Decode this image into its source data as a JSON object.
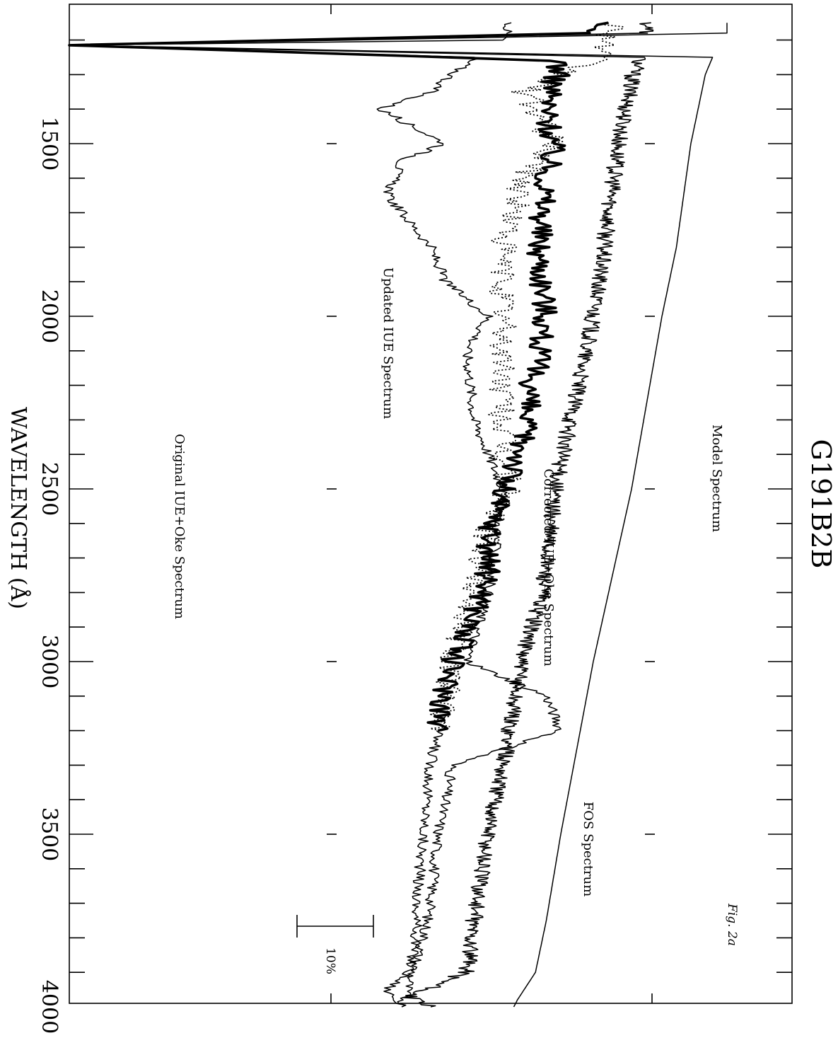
{
  "chart_data": {
    "type": "line",
    "orientation": "rotated-90",
    "title": "G191B2B",
    "xlabel": "WAVELENGTH (Å)",
    "xlim": [
      1150,
      4000
    ],
    "x_ticks_major": [
      1500,
      2000,
      2500,
      3000,
      3500,
      4000
    ],
    "x_ticks_minor_step": 100,
    "tick_labels": [
      "1500",
      "2000",
      "2500",
      "3000",
      "3500",
      "4000"
    ],
    "series_labels": [
      "Model Spectrum",
      "FOS Spectrum",
      "Corrected IUE+Oke Spectrum",
      "Updated IUE Spectrum",
      "Original IUE+Oke Spectrum"
    ],
    "scale_bar_label": "10%",
    "figure_label": "Fig. 2a",
    "series": [
      {
        "key": "model",
        "style": "solid-thin",
        "x": [
          1150,
          1180,
          1215,
          1250,
          1300,
          1500,
          1800,
          2000,
          2500,
          3000,
          3500,
          3750,
          3900,
          3980,
          4000
        ],
        "y": [
          0.91,
          0.91,
          0.0,
          0.89,
          0.88,
          0.86,
          0.84,
          0.82,
          0.778,
          0.725,
          0.68,
          0.66,
          0.645,
          0.62,
          0.615
        ]
      },
      {
        "key": "fos",
        "style": "solid-noisy",
        "x": [
          1150,
          1180,
          1215,
          1250,
          1300,
          1500,
          1800,
          2000,
          2500,
          2800,
          3000,
          3250,
          3500,
          3750,
          3900,
          3970,
          4000
        ],
        "y": [
          0.8,
          0.8,
          0.0,
          0.79,
          0.78,
          0.76,
          0.74,
          0.725,
          0.672,
          0.655,
          0.625,
          0.605,
          0.58,
          0.56,
          0.55,
          0.47,
          0.5
        ]
      },
      {
        "key": "corrected",
        "style": "solid-thick",
        "x": [
          1150,
          1180,
          1215,
          1260,
          1400,
          1500,
          1600,
          1800,
          2000,
          2100,
          2200,
          2300,
          2400,
          2500,
          2600,
          2800,
          3000,
          3100,
          3200
        ],
        "y": [
          0.73,
          0.72,
          0.0,
          0.68,
          0.66,
          0.67,
          0.66,
          0.65,
          0.66,
          0.65,
          0.64,
          0.63,
          0.625,
          0.6,
          0.585,
          0.575,
          0.53,
          0.52,
          0.51
        ]
      },
      {
        "key": "updated",
        "style": "dotted",
        "x": [
          1150,
          1250,
          1350,
          1500,
          1600,
          1800,
          2000,
          2200,
          2400,
          2500,
          2600,
          2800,
          3000,
          3100,
          3200
        ],
        "y": [
          0.76,
          0.73,
          0.63,
          0.67,
          0.63,
          0.6,
          0.6,
          0.6,
          0.6,
          0.61,
          0.58,
          0.56,
          0.53,
          0.52,
          0.515
        ]
      },
      {
        "key": "updated_ext",
        "style": "solid-thin",
        "x": [
          3200,
          3300,
          3400,
          3500,
          3600,
          3700,
          3800,
          3900,
          3950,
          4000
        ],
        "y": [
          0.51,
          0.5,
          0.495,
          0.49,
          0.485,
          0.48,
          0.48,
          0.47,
          0.44,
          0.46
        ]
      },
      {
        "key": "original",
        "style": "solid-thin",
        "x": [
          1150,
          1200,
          1215,
          1250,
          1350,
          1400,
          1500,
          1550,
          1650,
          1800,
          1900,
          2000,
          2100,
          2300,
          2500,
          2800,
          3000,
          3100,
          3200,
          3300,
          3500,
          3700,
          3800,
          4000
        ],
        "y": [
          0.61,
          0.6,
          0.0,
          0.56,
          0.5,
          0.43,
          0.52,
          0.46,
          0.44,
          0.5,
          0.52,
          0.58,
          0.55,
          0.56,
          0.6,
          0.58,
          0.55,
          0.66,
          0.68,
          0.53,
          0.51,
          0.5,
          0.49,
          0.46
        ]
      }
    ]
  }
}
